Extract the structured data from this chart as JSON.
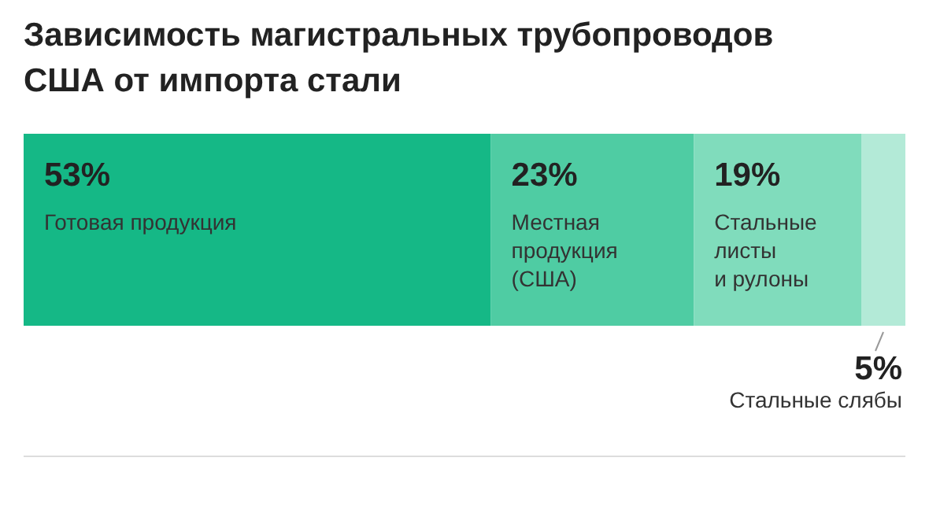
{
  "chart_data": {
    "type": "bar",
    "orientation": "horizontal",
    "stacked": true,
    "title": "Зависимость магистральных трубопроводов США от импорта стали",
    "categories": [
      null
    ],
    "series": [
      {
        "name": "Готовая продукция",
        "color": "#15b886",
        "values": [
          53
        ],
        "value_labels": [
          "53%"
        ]
      },
      {
        "name": "Местная продукция (США)",
        "color": "#4fcca3",
        "values": [
          23
        ],
        "value_labels": [
          "23%"
        ]
      },
      {
        "name": "Стальные листы и рулоны",
        "color": "#80dcbc",
        "values": [
          19
        ],
        "value_labels": [
          "19%"
        ]
      },
      {
        "name": "Стальные слябы",
        "color": "#b3ead7",
        "values": [
          5
        ],
        "value_labels": [
          "5%"
        ]
      }
    ]
  }
}
